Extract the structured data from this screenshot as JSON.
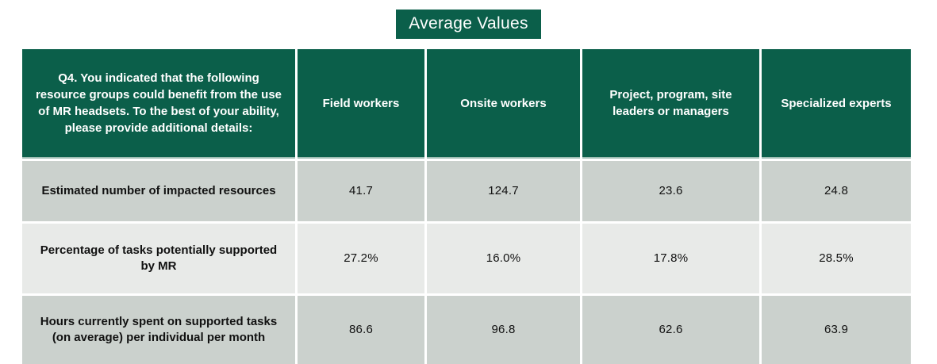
{
  "title": "Average Values",
  "colors": {
    "header_green": "#0b5f4a",
    "row_dark_gray": "#cbd1cd",
    "row_light_gray": "#e8eae8",
    "header_underline": "#9fbeb4",
    "text_on_green": "#ffffff",
    "text_on_gray": "#111111"
  },
  "chart_data": {
    "type": "table",
    "title": "Average Values",
    "corner_header": "Q4. You indicated that the following resource groups could benefit from the use of MR headsets. To the best of your ability, please provide additional details:",
    "columns": [
      "Field workers",
      "Onsite workers",
      "Project, program, site leaders or managers",
      "Specialized experts"
    ],
    "rows": [
      {
        "label": "Estimated number of impacted resources",
        "values": [
          "41.7",
          "124.7",
          "23.6",
          "24.8"
        ]
      },
      {
        "label": "Percentage of tasks potentially supported by MR",
        "values": [
          "27.2%",
          "16.0%",
          "17.8%",
          "28.5%"
        ]
      },
      {
        "label": "Hours currently spent on supported tasks (on average) per individual per month",
        "values": [
          "86.6",
          "96.8",
          "62.6",
          "63.9"
        ]
      }
    ]
  }
}
